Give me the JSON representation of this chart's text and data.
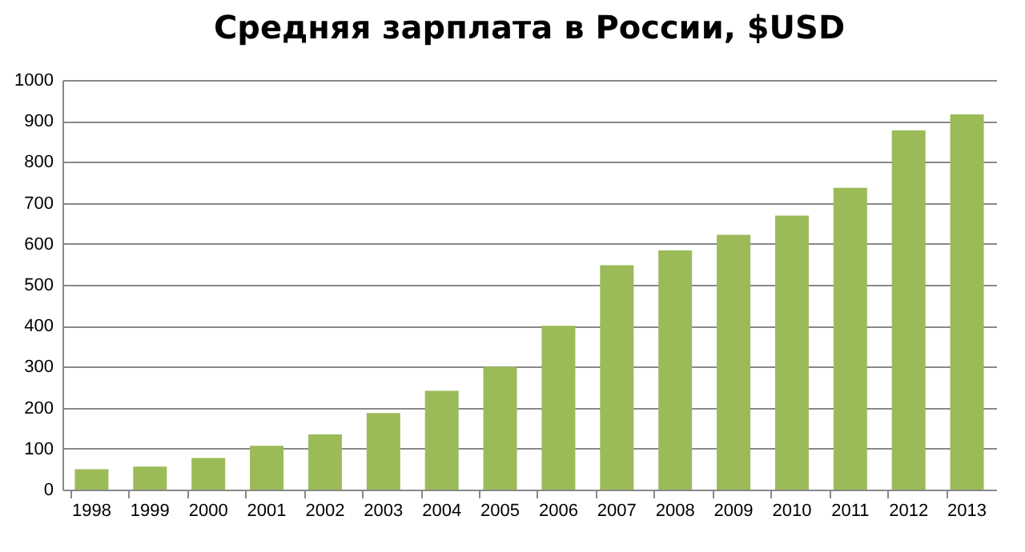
{
  "chart_data": {
    "type": "bar",
    "title": "Средняя зарплата в России, $USD",
    "categories": [
      "1998",
      "1999",
      "2000",
      "2001",
      "2002",
      "2003",
      "2004",
      "2005",
      "2006",
      "2007",
      "2008",
      "2009",
      "2010",
      "2011",
      "2012",
      "2013"
    ],
    "values": [
      50,
      56,
      77,
      107,
      135,
      187,
      241,
      300,
      400,
      548,
      584,
      622,
      669,
      737,
      877,
      916
    ],
    "color": "#9bbb59",
    "ylim": [
      0,
      1000
    ],
    "yticks": [
      0,
      100,
      200,
      300,
      400,
      500,
      600,
      700,
      800,
      900,
      1000
    ],
    "grid": "y"
  }
}
